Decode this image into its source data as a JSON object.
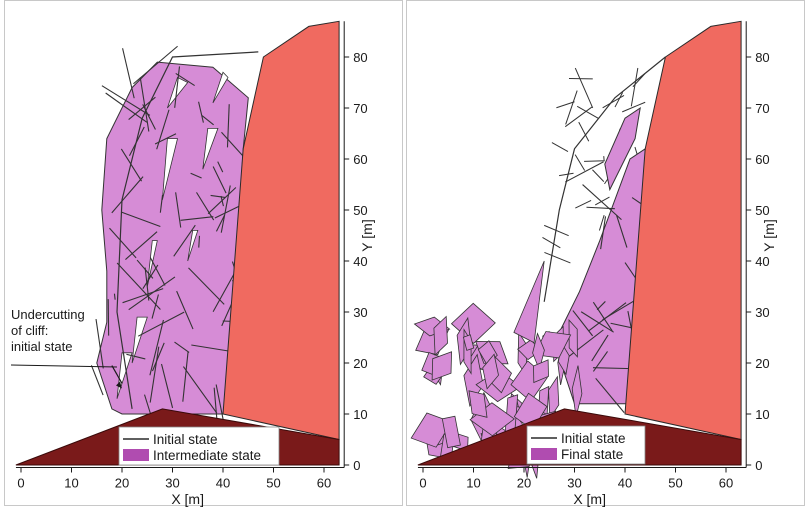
{
  "chart_data": [
    {
      "type": "scatter",
      "panel": "left",
      "xlabel": "X [m]",
      "ylabel": "Y [m]",
      "xlim": [
        -2,
        65
      ],
      "ylim": [
        -1,
        88
      ],
      "x_ticks": [
        0,
        10,
        20,
        30,
        40,
        50,
        60
      ],
      "y_ticks": [
        0,
        10,
        20,
        30,
        40,
        50,
        60,
        70,
        80
      ],
      "legend": [
        {
          "label": "Initial state",
          "style": "line",
          "color": "#2a2a2a"
        },
        {
          "label": "Intermediate state",
          "style": "patch",
          "color": "#b04cb0"
        }
      ],
      "annotation": {
        "lines": [
          "Undercutting",
          "of cliff:",
          "initial state"
        ],
        "arrow_to": [
          20,
          16
        ]
      },
      "colors": {
        "cliff": "#f06a60",
        "ground": "#7a1a1a",
        "blocks": "#d68cd6",
        "edges": "#333333"
      }
    },
    {
      "type": "scatter",
      "panel": "right",
      "xlabel": "X [m]",
      "ylabel": "Y [m]",
      "xlim": [
        -2,
        65
      ],
      "ylim": [
        -1,
        88
      ],
      "x_ticks": [
        0,
        10,
        20,
        30,
        40,
        50,
        60
      ],
      "y_ticks": [
        0,
        10,
        20,
        30,
        40,
        50,
        60,
        70,
        80
      ],
      "legend": [
        {
          "label": "Initial state",
          "style": "line",
          "color": "#2a2a2a"
        },
        {
          "label": "Final state",
          "style": "patch",
          "color": "#b04cb0"
        }
      ],
      "colors": {
        "cliff": "#f06a60",
        "ground": "#7a1a1a",
        "blocks": "#d68cd6",
        "edges": "#333333"
      }
    }
  ]
}
